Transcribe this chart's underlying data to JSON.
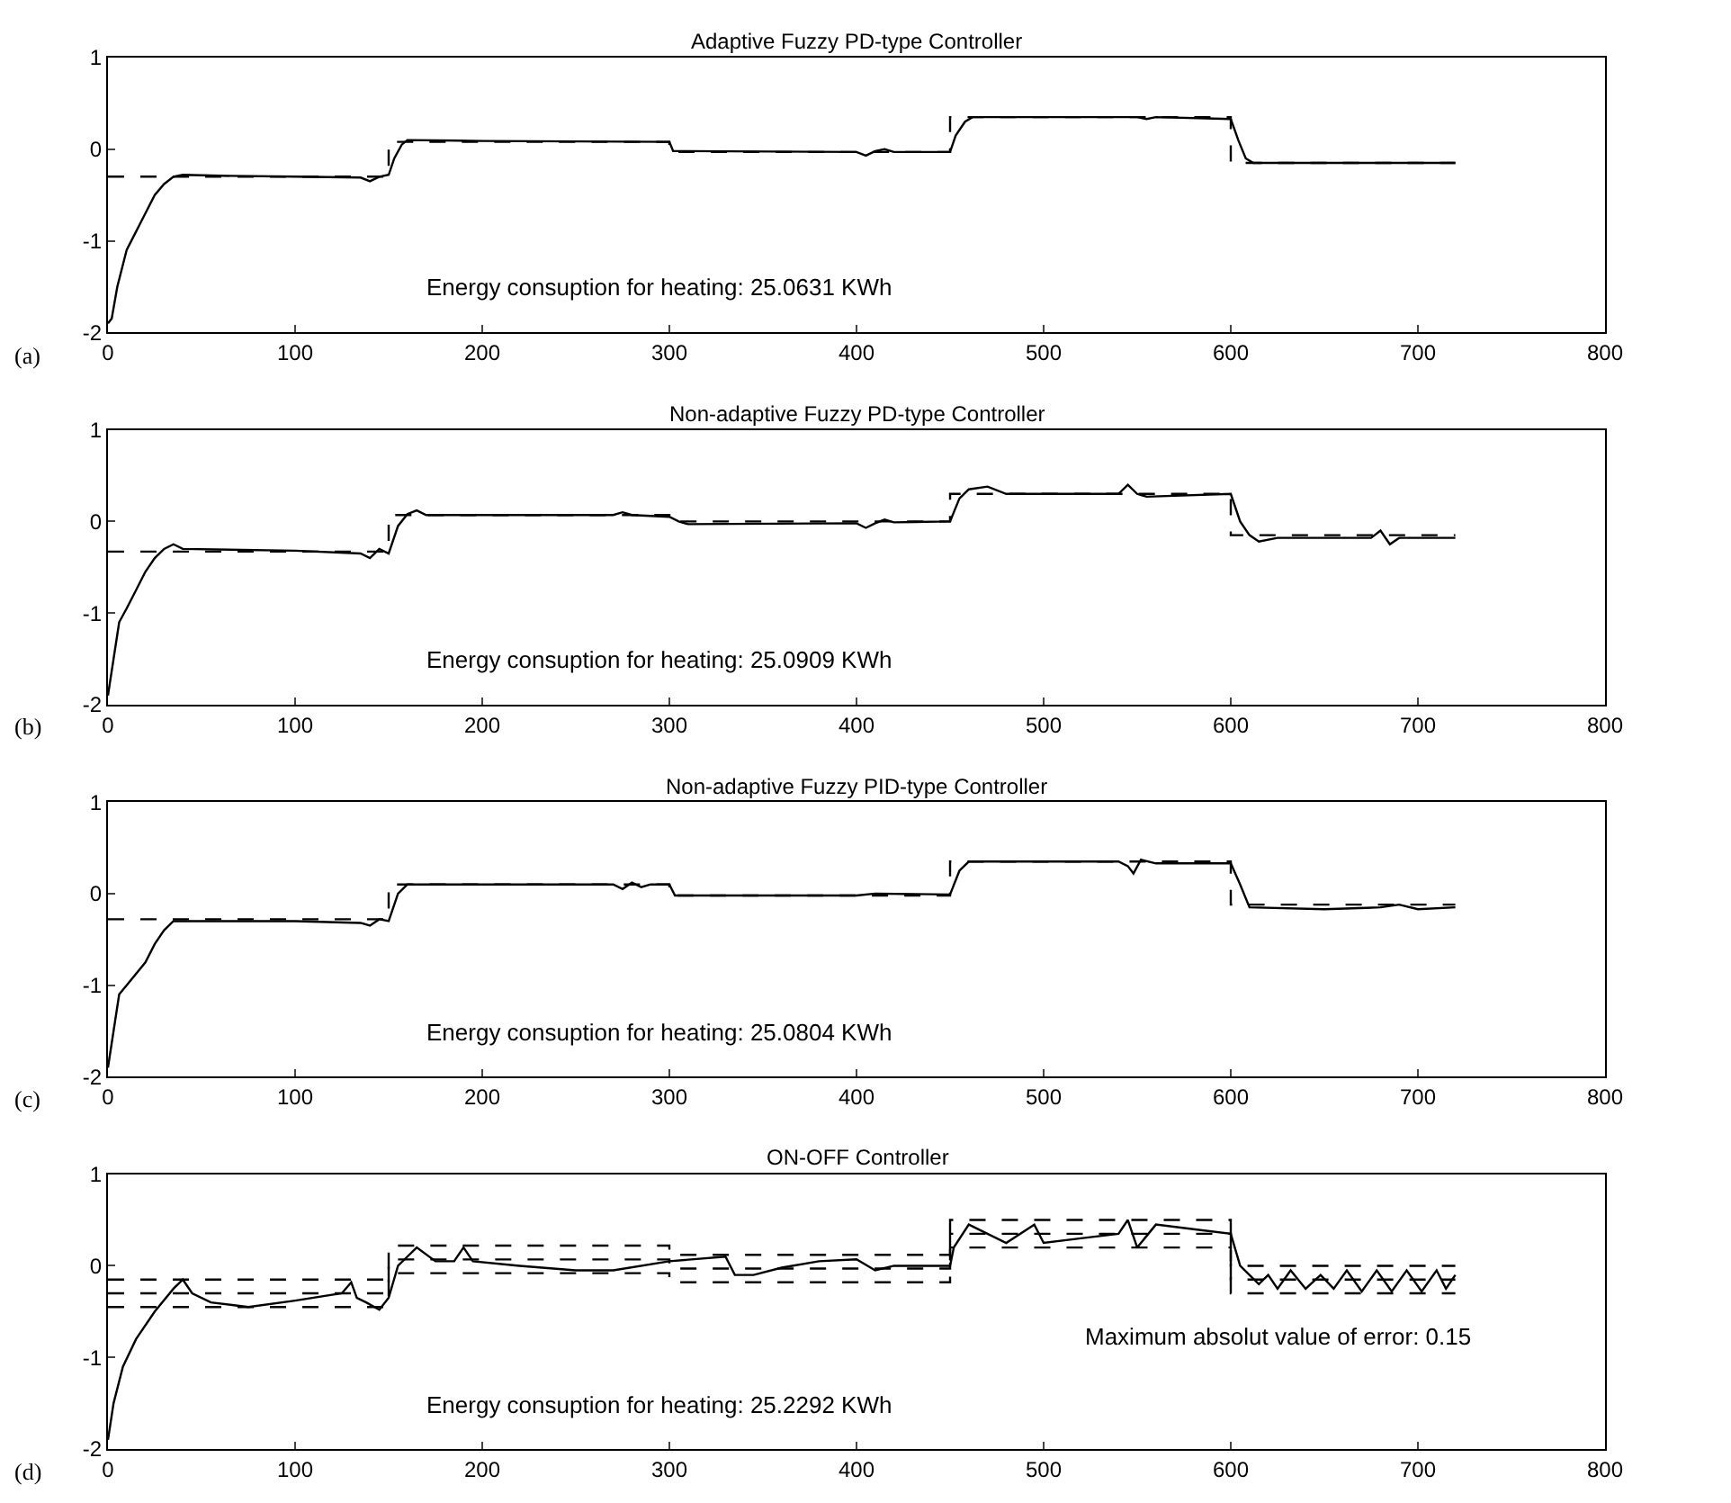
{
  "chart_data": [
    {
      "type": "line",
      "title": "Adaptive Fuzzy PD-type Controller",
      "annotations": [
        "(a)",
        "Energy consuption for heating: 25.0631 KWh"
      ],
      "xlim": [
        0,
        800
      ],
      "xticks": [
        0,
        100,
        200,
        300,
        400,
        500,
        600,
        700,
        800
      ],
      "ylim": [
        -2,
        1
      ],
      "yticks": [
        -2,
        -1,
        0,
        1
      ],
      "series": [
        {
          "color": "#000000",
          "line_style": "solid",
          "x": [
            0,
            2,
            5,
            10,
            15,
            20,
            25,
            30,
            35,
            40,
            60,
            100,
            135,
            140,
            145,
            150,
            153,
            157,
            160,
            200,
            300,
            302,
            400,
            405,
            410,
            415,
            420,
            450,
            453,
            458,
            462,
            550,
            555,
            560,
            600,
            604,
            608,
            612,
            720
          ],
          "values": [
            -1.9,
            -1.85,
            -1.5,
            -1.1,
            -0.9,
            -0.7,
            -0.5,
            -0.38,
            -0.3,
            -0.28,
            -0.29,
            -0.3,
            -0.31,
            -0.35,
            -0.3,
            -0.28,
            -0.1,
            0.05,
            0.1,
            0.09,
            0.08,
            -0.02,
            -0.03,
            -0.07,
            -0.02,
            0.0,
            -0.03,
            -0.03,
            0.15,
            0.3,
            0.35,
            0.35,
            0.33,
            0.35,
            0.33,
            0.1,
            -0.1,
            -0.15,
            -0.15
          ]
        },
        {
          "color": "#000000",
          "line_style": "dashed",
          "x": [
            0,
            150,
            150,
            300,
            300,
            450,
            450,
            600,
            600,
            720
          ],
          "values": [
            -0.3,
            -0.3,
            0.08,
            0.08,
            -0.03,
            -0.03,
            0.35,
            0.35,
            -0.15,
            -0.15
          ]
        }
      ]
    },
    {
      "type": "line",
      "title": "Non-adaptive Fuzzy PD-type Controller",
      "annotations": [
        "(b)",
        "Energy consuption for heating: 25.0909 KWh"
      ],
      "xlim": [
        0,
        800
      ],
      "xticks": [
        0,
        100,
        200,
        300,
        400,
        500,
        600,
        700,
        800
      ],
      "ylim": [
        -2,
        1
      ],
      "yticks": [
        -2,
        -1,
        0,
        1
      ],
      "series": [
        {
          "color": "#000000",
          "line_style": "solid",
          "x": [
            0,
            3,
            6,
            10,
            15,
            20,
            25,
            30,
            35,
            40,
            100,
            135,
            140,
            145,
            150,
            155,
            160,
            165,
            170,
            270,
            275,
            280,
            300,
            305,
            310,
            400,
            405,
            410,
            415,
            420,
            450,
            455,
            460,
            470,
            480,
            540,
            545,
            550,
            555,
            600,
            605,
            610,
            615,
            625,
            675,
            680,
            685,
            690,
            720
          ],
          "values": [
            -1.9,
            -1.5,
            -1.1,
            -0.95,
            -0.75,
            -0.55,
            -0.4,
            -0.3,
            -0.25,
            -0.3,
            -0.32,
            -0.35,
            -0.4,
            -0.3,
            -0.35,
            -0.05,
            0.08,
            0.12,
            0.07,
            0.07,
            0.1,
            0.07,
            0.05,
            0.0,
            -0.03,
            -0.02,
            -0.07,
            -0.02,
            0.02,
            -0.01,
            0.0,
            0.25,
            0.35,
            0.38,
            0.3,
            0.3,
            0.4,
            0.3,
            0.27,
            0.3,
            0.0,
            -0.15,
            -0.22,
            -0.18,
            -0.18,
            -0.1,
            -0.25,
            -0.18,
            -0.18
          ]
        },
        {
          "color": "#000000",
          "line_style": "dashed",
          "x": [
            0,
            150,
            150,
            300,
            300,
            450,
            450,
            600,
            600,
            720
          ],
          "values": [
            -0.33,
            -0.33,
            0.07,
            0.07,
            0.0,
            0.0,
            0.3,
            0.3,
            -0.15,
            -0.15
          ]
        }
      ]
    },
    {
      "type": "line",
      "title": "Non-adaptive Fuzzy PID-type Controller",
      "annotations": [
        "(c)",
        "Energy consuption for heating: 25.0804 KWh"
      ],
      "xlim": [
        0,
        800
      ],
      "xticks": [
        0,
        100,
        200,
        300,
        400,
        500,
        600,
        700,
        800
      ],
      "ylim": [
        -2,
        1
      ],
      "yticks": [
        -2,
        -1,
        0,
        1
      ],
      "series": [
        {
          "color": "#000000",
          "line_style": "solid",
          "x": [
            0,
            3,
            6,
            10,
            20,
            25,
            30,
            35,
            100,
            135,
            140,
            145,
            150,
            155,
            160,
            270,
            275,
            280,
            285,
            290,
            300,
            303,
            400,
            410,
            450,
            455,
            460,
            540,
            545,
            548,
            552,
            560,
            600,
            605,
            610,
            650,
            680,
            690,
            700,
            720
          ],
          "values": [
            -1.9,
            -1.5,
            -1.1,
            -1.0,
            -0.75,
            -0.55,
            -0.4,
            -0.3,
            -0.3,
            -0.32,
            -0.35,
            -0.28,
            -0.3,
            0.0,
            0.1,
            0.1,
            0.05,
            0.12,
            0.07,
            0.1,
            0.1,
            -0.02,
            -0.02,
            0.0,
            -0.01,
            0.25,
            0.35,
            0.35,
            0.3,
            0.22,
            0.37,
            0.33,
            0.33,
            0.1,
            -0.15,
            -0.17,
            -0.15,
            -0.12,
            -0.17,
            -0.15
          ]
        },
        {
          "color": "#000000",
          "line_style": "dashed",
          "x": [
            0,
            150,
            150,
            300,
            300,
            450,
            450,
            600,
            600,
            720
          ],
          "values": [
            -0.28,
            -0.28,
            0.1,
            0.1,
            -0.02,
            -0.02,
            0.35,
            0.35,
            -0.12,
            -0.12
          ]
        }
      ]
    },
    {
      "type": "line",
      "title": "ON-OFF Controller",
      "annotations": [
        "(d)",
        "Maximum absolut value of error: 0.15",
        "Energy consuption for heating: 25.2292 KWh"
      ],
      "xlim": [
        0,
        800
      ],
      "xticks": [
        0,
        100,
        200,
        300,
        400,
        500,
        600,
        700,
        800
      ],
      "ylim": [
        -2,
        1
      ],
      "yticks": [
        -2,
        -1,
        0,
        1
      ],
      "series": [
        {
          "color": "#000000",
          "line_style": "solid",
          "x": [
            0,
            3,
            8,
            15,
            25,
            35,
            40,
            45,
            55,
            75,
            100,
            125,
            130,
            133,
            138,
            145,
            150,
            155,
            160,
            165,
            175,
            185,
            190,
            195,
            220,
            250,
            270,
            300,
            330,
            335,
            345,
            360,
            380,
            400,
            410,
            420,
            450,
            452,
            460,
            470,
            480,
            495,
            500,
            520,
            540,
            545,
            550,
            560,
            580,
            600,
            605,
            610,
            615,
            620,
            625,
            632,
            640,
            648,
            655,
            662,
            670,
            678,
            686,
            694,
            702,
            710,
            715,
            720
          ],
          "values": [
            -1.9,
            -1.5,
            -1.1,
            -0.8,
            -0.5,
            -0.25,
            -0.15,
            -0.3,
            -0.4,
            -0.45,
            -0.38,
            -0.3,
            -0.18,
            -0.35,
            -0.4,
            -0.48,
            -0.35,
            0.0,
            0.1,
            0.2,
            0.05,
            0.05,
            0.2,
            0.05,
            0.0,
            -0.05,
            -0.05,
            0.05,
            0.1,
            -0.1,
            -0.1,
            -0.02,
            0.05,
            0.07,
            -0.05,
            0.0,
            0.0,
            0.2,
            0.45,
            0.35,
            0.25,
            0.45,
            0.25,
            0.3,
            0.35,
            0.5,
            0.2,
            0.45,
            0.4,
            0.35,
            0.0,
            -0.1,
            -0.2,
            -0.1,
            -0.25,
            -0.05,
            -0.25,
            -0.1,
            -0.25,
            -0.05,
            -0.28,
            -0.05,
            -0.28,
            -0.05,
            -0.28,
            -0.05,
            -0.25,
            -0.1
          ]
        },
        {
          "color": "#000000",
          "line_style": "dashed",
          "x": [
            0,
            150,
            150,
            300,
            300,
            450,
            450,
            600,
            600,
            720
          ],
          "values": [
            -0.15,
            -0.15,
            0.22,
            0.22,
            0.12,
            0.12,
            0.5,
            0.5,
            0.0,
            0.0
          ]
        },
        {
          "color": "#000000",
          "line_style": "dashed",
          "x": [
            0,
            150,
            150,
            300,
            300,
            450,
            450,
            600,
            600,
            720
          ],
          "values": [
            -0.3,
            -0.3,
            0.07,
            0.07,
            -0.03,
            -0.03,
            0.35,
            0.35,
            -0.15,
            -0.15
          ]
        },
        {
          "color": "#000000",
          "line_style": "dashed",
          "x": [
            0,
            150,
            150,
            300,
            300,
            450,
            450,
            600,
            600,
            720
          ],
          "values": [
            -0.45,
            -0.45,
            -0.08,
            -0.08,
            -0.18,
            -0.18,
            0.2,
            0.2,
            -0.3,
            -0.3
          ]
        }
      ]
    }
  ]
}
